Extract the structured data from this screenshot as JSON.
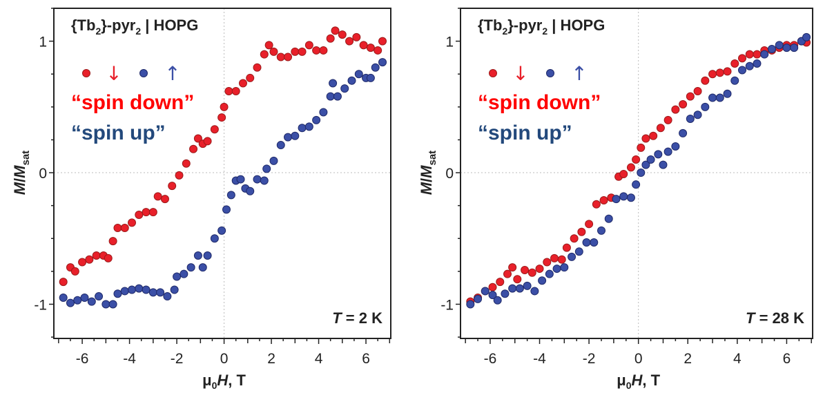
{
  "colors": {
    "spin_down": "#e8202a",
    "spin_up": "#3b4fa6",
    "spin_down_text": "#ff0000",
    "spin_up_text": "#23497c"
  },
  "chart_data": [
    {
      "type": "scatter",
      "title": "{Tb2}-pyr2 | HOPG",
      "title_main": "{Tb",
      "title_sub1": "2",
      "title_mid": "}-pyr",
      "title_sub2": "2",
      "title_end": " | HOPG",
      "annotation": "T = 2 K",
      "annotation_T": "T",
      "annotation_rest": " = 2 K",
      "xlabel": "μ0H, T",
      "ylabel": "M/Msat",
      "xlim": [
        -7.2,
        7.05
      ],
      "ylim": [
        -1.26,
        1.25
      ],
      "xticks": [
        -6,
        -4,
        -2,
        0,
        2,
        4,
        6
      ],
      "xtick_labels": [
        "-6",
        "-4",
        "-2",
        "0",
        "2",
        "4",
        "6"
      ],
      "yticks": [
        -1,
        0,
        1
      ],
      "ytick_labels": [
        "-1",
        "0",
        "1"
      ],
      "grid": "dotted lines at x=0 and y=0",
      "legend": {
        "marker1": "●",
        "arrow1": "↓",
        "marker2": "●",
        "arrow2": "↑",
        "label1": "“spin down”",
        "label2": "“spin up”",
        "placement": "top-left"
      },
      "series": [
        {
          "name": "spin down",
          "color": "#e8202a",
          "x": [
            -6.8,
            -6.5,
            -6.3,
            -6.0,
            -5.7,
            -5.4,
            -5.1,
            -4.9,
            -4.7,
            -4.5,
            -4.2,
            -3.9,
            -3.6,
            -3.3,
            -3.0,
            -2.8,
            -2.5,
            -2.2,
            -1.9,
            -1.6,
            -1.3,
            -1.1,
            -0.9,
            -0.7,
            -0.4,
            -0.1,
            0.0,
            0.2,
            0.5,
            0.8,
            1.1,
            1.4,
            1.7,
            1.9,
            2.1,
            2.4,
            2.7,
            3.0,
            3.3,
            3.6,
            3.9,
            4.2,
            4.5,
            4.7,
            5.0,
            5.3,
            5.6,
            5.9,
            6.2,
            6.5,
            6.7
          ],
          "y": [
            -0.83,
            -0.72,
            -0.75,
            -0.68,
            -0.66,
            -0.63,
            -0.63,
            -0.65,
            -0.52,
            -0.42,
            -0.42,
            -0.38,
            -0.32,
            -0.3,
            -0.3,
            -0.18,
            -0.2,
            -0.1,
            -0.02,
            0.07,
            0.18,
            0.26,
            0.22,
            0.24,
            0.33,
            0.42,
            0.5,
            0.62,
            0.62,
            0.68,
            0.72,
            0.8,
            0.9,
            0.97,
            0.92,
            0.88,
            0.88,
            0.92,
            0.92,
            0.97,
            0.93,
            0.93,
            1.02,
            1.08,
            1.05,
            1.0,
            1.03,
            0.97,
            0.95,
            0.93,
            1.0
          ]
        },
        {
          "name": "spin up",
          "color": "#3b4fa6",
          "x": [
            -6.8,
            -6.5,
            -6.2,
            -5.9,
            -5.6,
            -5.3,
            -5.0,
            -4.7,
            -4.5,
            -4.2,
            -3.9,
            -3.6,
            -3.3,
            -3.0,
            -2.7,
            -2.4,
            -2.1,
            -2.0,
            -1.7,
            -1.4,
            -1.1,
            -0.9,
            -0.7,
            -0.4,
            -0.1,
            0.1,
            0.3,
            0.5,
            0.7,
            0.9,
            1.1,
            1.4,
            1.7,
            1.8,
            2.1,
            2.4,
            2.7,
            3.0,
            3.3,
            3.6,
            3.9,
            4.2,
            4.5,
            4.6,
            4.8,
            5.1,
            5.4,
            5.7,
            6.0,
            6.2,
            6.4,
            6.7
          ],
          "y": [
            -0.95,
            -0.99,
            -0.97,
            -0.95,
            -0.98,
            -0.94,
            -1.0,
            -1.0,
            -0.92,
            -0.9,
            -0.89,
            -0.88,
            -0.89,
            -0.91,
            -0.91,
            -0.94,
            -0.89,
            -0.79,
            -0.77,
            -0.72,
            -0.63,
            -0.72,
            -0.63,
            -0.5,
            -0.44,
            -0.28,
            -0.17,
            -0.06,
            -0.05,
            -0.12,
            -0.14,
            -0.05,
            -0.06,
            0.03,
            0.09,
            0.21,
            0.27,
            0.28,
            0.34,
            0.35,
            0.4,
            0.46,
            0.58,
            0.68,
            0.58,
            0.64,
            0.7,
            0.75,
            0.72,
            0.72,
            0.8,
            0.84
          ]
        }
      ]
    },
    {
      "type": "scatter",
      "title": "{Tb2}-pyr2 | HOPG",
      "title_main": "{Tb",
      "title_sub1": "2",
      "title_mid": "}-pyr",
      "title_sub2": "2",
      "title_end": " | HOPG",
      "annotation": "T = 28 K",
      "annotation_T": "T",
      "annotation_rest": " = 28 K",
      "xlabel": "μ0H, T",
      "ylabel": "M/Msat",
      "xlim": [
        -7.2,
        7.05
      ],
      "ylim": [
        -1.26,
        1.25
      ],
      "xticks": [
        -6,
        -4,
        -2,
        0,
        2,
        4,
        6
      ],
      "xtick_labels": [
        "-6",
        "-4",
        "-2",
        "0",
        "2",
        "4",
        "6"
      ],
      "yticks": [
        -1,
        0,
        1
      ],
      "ytick_labels": [
        "-1",
        "0",
        "1"
      ],
      "grid": "dotted lines at x=0 and y=0",
      "legend": {
        "marker1": "●",
        "arrow1": "↓",
        "marker2": "●",
        "arrow2": "↑",
        "label1": "“spin down”",
        "label2": "“spin up”",
        "placement": "top-left"
      },
      "series": [
        {
          "name": "spin down",
          "color": "#e8202a",
          "x": [
            -6.8,
            -6.5,
            -6.2,
            -5.9,
            -5.6,
            -5.3,
            -5.1,
            -4.9,
            -4.6,
            -4.3,
            -4.0,
            -3.7,
            -3.4,
            -3.1,
            -2.9,
            -2.6,
            -2.3,
            -2.0,
            -1.7,
            -1.4,
            -1.1,
            -0.8,
            -0.6,
            -0.3,
            -0.1,
            0.1,
            0.3,
            0.6,
            0.9,
            1.2,
            1.5,
            1.8,
            2.1,
            2.4,
            2.7,
            3.0,
            3.3,
            3.6,
            3.9,
            4.2,
            4.5,
            4.8,
            5.1,
            5.4,
            5.7,
            6.0,
            6.3,
            6.6,
            6.8
          ],
          "y": [
            -0.98,
            -0.95,
            -0.9,
            -0.87,
            -0.83,
            -0.77,
            -0.72,
            -0.81,
            -0.74,
            -0.76,
            -0.73,
            -0.68,
            -0.65,
            -0.66,
            -0.57,
            -0.5,
            -0.45,
            -0.39,
            -0.24,
            -0.21,
            -0.19,
            -0.03,
            -0.01,
            0.04,
            0.1,
            0.19,
            0.26,
            0.28,
            0.34,
            0.4,
            0.48,
            0.52,
            0.58,
            0.62,
            0.7,
            0.75,
            0.76,
            0.77,
            0.83,
            0.87,
            0.9,
            0.9,
            0.93,
            0.93,
            0.95,
            0.97,
            0.97,
            1.0,
            0.99
          ]
        },
        {
          "name": "spin up",
          "color": "#3b4fa6",
          "x": [
            -6.8,
            -6.5,
            -6.2,
            -5.9,
            -5.7,
            -5.4,
            -5.1,
            -4.8,
            -4.5,
            -4.2,
            -3.9,
            -3.6,
            -3.3,
            -3.0,
            -2.7,
            -2.4,
            -2.1,
            -1.8,
            -1.5,
            -1.2,
            -0.9,
            -0.6,
            -0.3,
            -0.1,
            0.1,
            0.3,
            0.5,
            0.8,
            1.0,
            1.2,
            1.5,
            1.8,
            2.1,
            2.4,
            2.7,
            3.0,
            3.3,
            3.6,
            3.9,
            4.2,
            4.5,
            4.8,
            5.1,
            5.4,
            5.7,
            6.0,
            6.3,
            6.6,
            6.8
          ],
          "y": [
            -1.0,
            -0.96,
            -0.9,
            -0.93,
            -0.97,
            -0.92,
            -0.88,
            -0.88,
            -0.86,
            -0.9,
            -0.82,
            -0.77,
            -0.73,
            -0.72,
            -0.64,
            -0.6,
            -0.53,
            -0.53,
            -0.44,
            -0.35,
            -0.2,
            -0.18,
            -0.19,
            -0.09,
            0.0,
            0.06,
            0.1,
            0.14,
            0.06,
            0.16,
            0.2,
            0.3,
            0.41,
            0.44,
            0.5,
            0.57,
            0.57,
            0.6,
            0.7,
            0.78,
            0.81,
            0.83,
            0.9,
            0.94,
            0.97,
            0.95,
            0.95,
            1.0,
            1.03
          ]
        }
      ]
    }
  ]
}
